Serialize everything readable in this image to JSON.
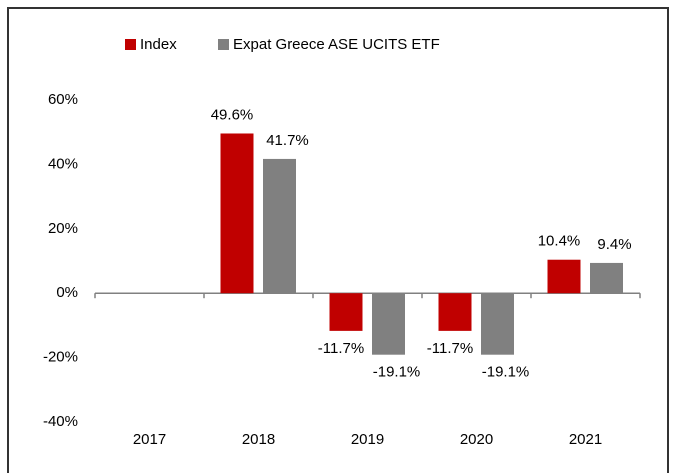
{
  "chart_data": {
    "type": "bar",
    "categories": [
      "2017",
      "2018",
      "2019",
      "2020",
      "2021"
    ],
    "series": [
      {
        "name": "Index",
        "color": "#c00000",
        "values": [
          null,
          49.6,
          -11.7,
          -11.7,
          10.4
        ],
        "value_labels": [
          null,
          "49.6%",
          "-11.7%",
          "-11.7%",
          "10.4%"
        ]
      },
      {
        "name": "Expat Greece ASE UCITS ETF",
        "color": "#808080",
        "values": [
          null,
          41.7,
          -19.1,
          -19.1,
          9.4
        ],
        "value_labels": [
          null,
          "41.7%",
          "-19.1%",
          "-19.1%",
          "9.4%"
        ]
      }
    ],
    "ylim": [
      -40,
      60
    ],
    "yticks": [
      {
        "value": -40,
        "label": "-40%"
      },
      {
        "value": -20,
        "label": "-20%"
      },
      {
        "value": 0,
        "label": "0%"
      },
      {
        "value": 20,
        "label": "20%"
      },
      {
        "value": 40,
        "label": "40%"
      },
      {
        "value": 60,
        "label": "60%"
      }
    ],
    "legend": "top"
  }
}
